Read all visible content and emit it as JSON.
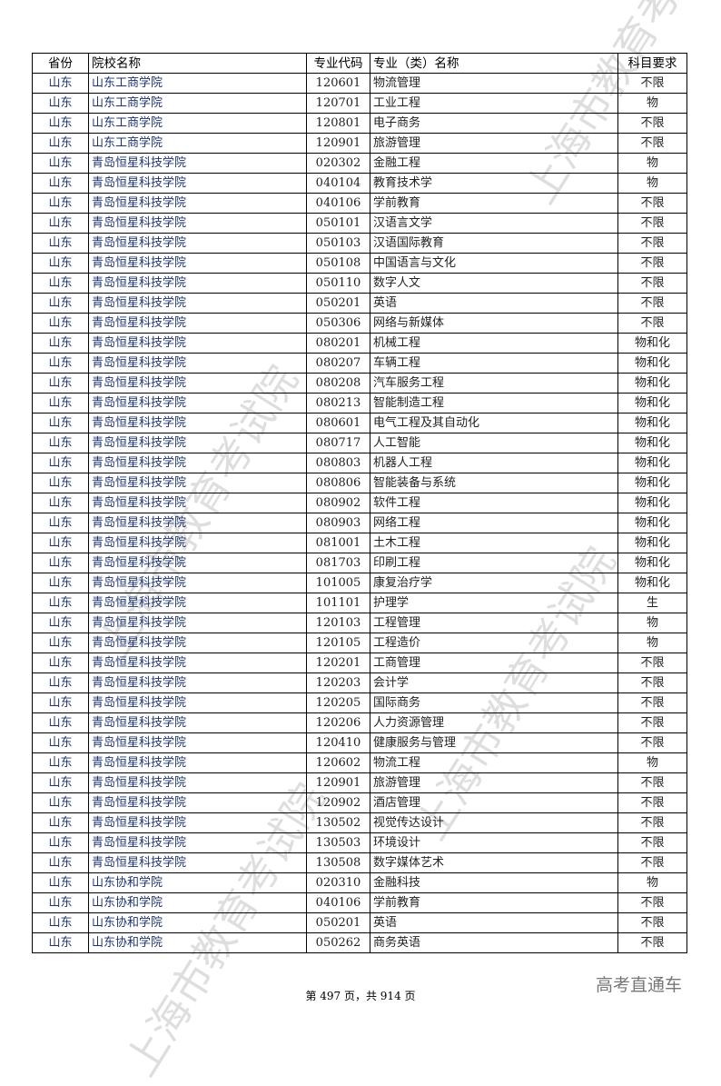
{
  "table": {
    "headers": [
      "省份",
      "院校名称",
      "专业代码",
      "专业（类）名称",
      "科目要求"
    ],
    "rows": [
      [
        "山东",
        "山东工商学院",
        "120601",
        "物流管理",
        "不限"
      ],
      [
        "山东",
        "山东工商学院",
        "120701",
        "工业工程",
        "物"
      ],
      [
        "山东",
        "山东工商学院",
        "120801",
        "电子商务",
        "不限"
      ],
      [
        "山东",
        "山东工商学院",
        "120901",
        "旅游管理",
        "不限"
      ],
      [
        "山东",
        "青岛恒星科技学院",
        "020302",
        "金融工程",
        "物"
      ],
      [
        "山东",
        "青岛恒星科技学院",
        "040104",
        "教育技术学",
        "物"
      ],
      [
        "山东",
        "青岛恒星科技学院",
        "040106",
        "学前教育",
        "不限"
      ],
      [
        "山东",
        "青岛恒星科技学院",
        "050101",
        "汉语言文学",
        "不限"
      ],
      [
        "山东",
        "青岛恒星科技学院",
        "050103",
        "汉语国际教育",
        "不限"
      ],
      [
        "山东",
        "青岛恒星科技学院",
        "050108",
        "中国语言与文化",
        "不限"
      ],
      [
        "山东",
        "青岛恒星科技学院",
        "050110",
        "数字人文",
        "不限"
      ],
      [
        "山东",
        "青岛恒星科技学院",
        "050201",
        "英语",
        "不限"
      ],
      [
        "山东",
        "青岛恒星科技学院",
        "050306",
        "网络与新媒体",
        "不限"
      ],
      [
        "山东",
        "青岛恒星科技学院",
        "080201",
        "机械工程",
        "物和化"
      ],
      [
        "山东",
        "青岛恒星科技学院",
        "080207",
        "车辆工程",
        "物和化"
      ],
      [
        "山东",
        "青岛恒星科技学院",
        "080208",
        "汽车服务工程",
        "物和化"
      ],
      [
        "山东",
        "青岛恒星科技学院",
        "080213",
        "智能制造工程",
        "物和化"
      ],
      [
        "山东",
        "青岛恒星科技学院",
        "080601",
        "电气工程及其自动化",
        "物和化"
      ],
      [
        "山东",
        "青岛恒星科技学院",
        "080717",
        "人工智能",
        "物和化"
      ],
      [
        "山东",
        "青岛恒星科技学院",
        "080803",
        "机器人工程",
        "物和化"
      ],
      [
        "山东",
        "青岛恒星科技学院",
        "080806",
        "智能装备与系统",
        "物和化"
      ],
      [
        "山东",
        "青岛恒星科技学院",
        "080902",
        "软件工程",
        "物和化"
      ],
      [
        "山东",
        "青岛恒星科技学院",
        "080903",
        "网络工程",
        "物和化"
      ],
      [
        "山东",
        "青岛恒星科技学院",
        "081001",
        "土木工程",
        "物和化"
      ],
      [
        "山东",
        "青岛恒星科技学院",
        "081703",
        "印刷工程",
        "物和化"
      ],
      [
        "山东",
        "青岛恒星科技学院",
        "101005",
        "康复治疗学",
        "物和化"
      ],
      [
        "山东",
        "青岛恒星科技学院",
        "101101",
        "护理学",
        "生"
      ],
      [
        "山东",
        "青岛恒星科技学院",
        "120103",
        "工程管理",
        "物"
      ],
      [
        "山东",
        "青岛恒星科技学院",
        "120105",
        "工程造价",
        "物"
      ],
      [
        "山东",
        "青岛恒星科技学院",
        "120201",
        "工商管理",
        "不限"
      ],
      [
        "山东",
        "青岛恒星科技学院",
        "120203",
        "会计学",
        "不限"
      ],
      [
        "山东",
        "青岛恒星科技学院",
        "120205",
        "国际商务",
        "不限"
      ],
      [
        "山东",
        "青岛恒星科技学院",
        "120206",
        "人力资源管理",
        "不限"
      ],
      [
        "山东",
        "青岛恒星科技学院",
        "120410",
        "健康服务与管理",
        "不限"
      ],
      [
        "山东",
        "青岛恒星科技学院",
        "120602",
        "物流工程",
        "物"
      ],
      [
        "山东",
        "青岛恒星科技学院",
        "120901",
        "旅游管理",
        "不限"
      ],
      [
        "山东",
        "青岛恒星科技学院",
        "120902",
        "酒店管理",
        "不限"
      ],
      [
        "山东",
        "青岛恒星科技学院",
        "130502",
        "视觉传达设计",
        "不限"
      ],
      [
        "山东",
        "青岛恒星科技学院",
        "130503",
        "环境设计",
        "不限"
      ],
      [
        "山东",
        "青岛恒星科技学院",
        "130508",
        "数字媒体艺术",
        "不限"
      ],
      [
        "山东",
        "山东协和学院",
        "020310",
        "金融科技",
        "物"
      ],
      [
        "山东",
        "山东协和学院",
        "040106",
        "学前教育",
        "不限"
      ],
      [
        "山东",
        "山东协和学院",
        "050201",
        "英语",
        "不限"
      ],
      [
        "山东",
        "山东协和学院",
        "050262",
        "商务英语",
        "不限"
      ]
    ]
  },
  "footer": "第 497 页，共 914 页",
  "watermark": "上海市教育考试院",
  "logo": "高考直通车"
}
